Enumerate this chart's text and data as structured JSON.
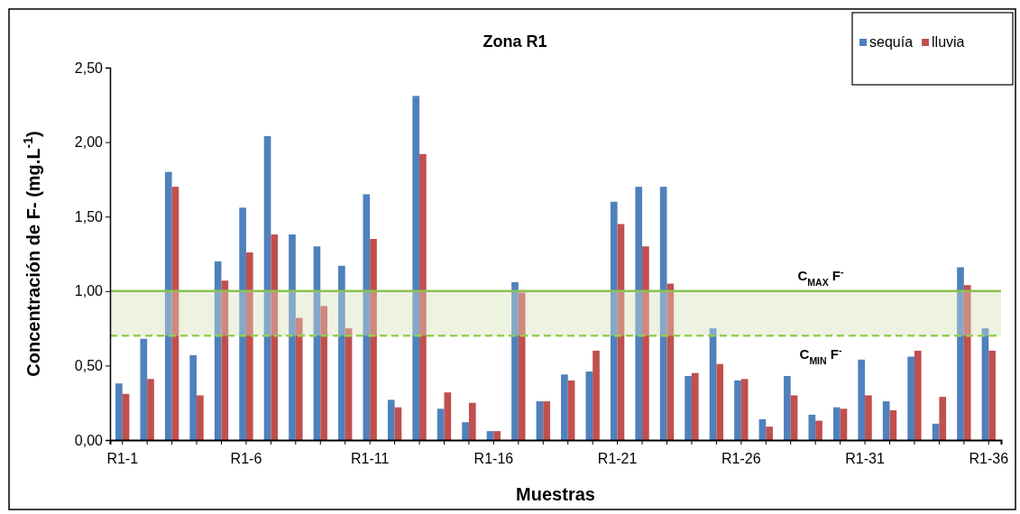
{
  "chart_data": {
    "type": "bar",
    "title": "Zona R1",
    "xlabel": "Muestras",
    "ylabel": "Concentración de F- (mg.L$^{-1}$)",
    "categories": [
      "R1-1",
      null,
      null,
      null,
      null,
      "R1-6",
      null,
      null,
      null,
      null,
      "R1-11",
      null,
      null,
      null,
      null,
      "R1-16",
      null,
      null,
      null,
      null,
      "R1-21",
      null,
      null,
      null,
      null,
      "R1-26",
      null,
      null,
      null,
      null,
      "R1-31",
      null,
      null,
      null,
      null,
      "R1-36"
    ],
    "series": [
      {
        "name": "sequía",
        "color": "#4f81bd",
        "values": [
          0.38,
          0.68,
          1.8,
          0.57,
          1.2,
          1.56,
          2.04,
          1.38,
          1.3,
          1.17,
          1.65,
          0.27,
          2.31,
          0.21,
          0.12,
          0.06,
          1.06,
          0.26,
          0.44,
          0.46,
          1.6,
          1.7,
          1.7,
          0.43,
          0.75,
          0.4,
          0.14,
          0.43,
          0.17,
          0.22,
          0.54,
          0.26,
          0.56,
          0.11,
          1.16,
          0.75
        ]
      },
      {
        "name": "lluvia",
        "color": "#c0504d",
        "values": [
          0.31,
          0.41,
          1.7,
          0.3,
          1.07,
          1.26,
          1.38,
          0.82,
          0.9,
          0.75,
          1.35,
          0.22,
          1.92,
          0.32,
          0.25,
          0.06,
          0.99,
          0.26,
          0.4,
          0.6,
          1.45,
          1.3,
          1.05,
          0.45,
          0.51,
          0.41,
          0.09,
          0.3,
          0.13,
          0.21,
          0.3,
          0.2,
          0.6,
          0.29,
          1.04,
          0.6
        ]
      }
    ],
    "ylim": [
      0,
      2.5
    ],
    "yticks": [
      {
        "value": 0,
        "label": "0,00"
      },
      {
        "value": 0.5,
        "label": "0,50"
      },
      {
        "value": 1,
        "label": "1,00"
      },
      {
        "value": 1.5,
        "label": "1,50"
      },
      {
        "value": 2,
        "label": "2,00"
      },
      {
        "value": 2.5,
        "label": "2,50"
      }
    ],
    "ref_lines": [
      {
        "axis": "y",
        "value": 1,
        "label": "C$_{MAX}$ F$^{-}$",
        "color": "#8cc152",
        "line_style": "solid"
      },
      {
        "axis": "y",
        "value": 0.7,
        "label": "C$_{MIN}$ F$^{-}$",
        "color": "#92d050",
        "line_style": "dashed"
      }
    ],
    "bands": [
      {
        "axis": "y",
        "from": 0.7,
        "to": 1,
        "color": "#ebf1de"
      }
    ],
    "legend": "top right",
    "grid": false
  }
}
